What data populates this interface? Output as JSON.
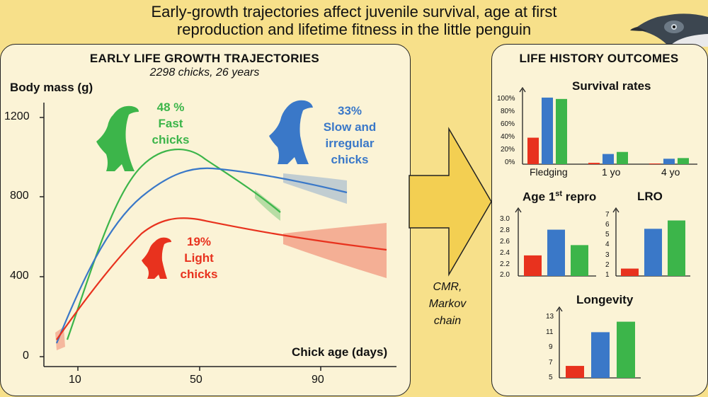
{
  "header": {
    "line1": "Early-growth trajectories affect juvenile survival, age at first",
    "line2": "reproduction and lifetime fitness in the little penguin"
  },
  "left": {
    "title": "EARLY LIFE GROWTH TRAJECTORIES",
    "subtitle": "2298 chicks, 26 years",
    "ylabel": "Body mass (g)",
    "xlabel": "Chick age (days)",
    "yticks": [
      "1200",
      "800",
      "400",
      "0"
    ],
    "xticks": [
      "10",
      "50",
      "90"
    ],
    "groups": {
      "fast": {
        "pct": "48 %",
        "line1": "Fast",
        "line2": "chicks",
        "color": "#3cb54a"
      },
      "slow": {
        "pct": "33%",
        "line1": "Slow and",
        "line2": "irregular",
        "line3": "chicks",
        "color": "#3a78c8"
      },
      "light": {
        "pct": "19%",
        "line1": "Light",
        "line2": "chicks",
        "color": "#e8321e"
      }
    }
  },
  "arrow": {
    "method1": "CMR,",
    "method2": "Markov",
    "method3": "chain"
  },
  "right": {
    "title": "LIFE HISTORY OUTCOMES",
    "survival": {
      "title": "Survival rates",
      "yticks": [
        "100%",
        "80%",
        "60%",
        "40%",
        "20%",
        "0%"
      ],
      "categories": [
        "Fledging",
        "1 yo",
        "4 yo"
      ]
    },
    "age": {
      "title": "Age 1",
      "sup": "st",
      "title_end": " repro",
      "yticks": [
        "3.0",
        "2.8",
        "2.6",
        "2.4",
        "2.2",
        "2.0"
      ]
    },
    "lro": {
      "title": "LRO",
      "yticks": [
        "7",
        "6",
        "5",
        "4",
        "3",
        "2",
        "1"
      ]
    },
    "longevity": {
      "title": "Longevity",
      "yticks": [
        "13",
        "11",
        "9",
        "7",
        "5"
      ]
    }
  },
  "chart_data": [
    {
      "type": "line",
      "title": "EARLY LIFE GROWTH TRAJECTORIES",
      "xlabel": "Chick age (days)",
      "ylabel": "Body mass (g)",
      "xlim": [
        0,
        105
      ],
      "ylim": [
        0,
        1250
      ],
      "series": [
        {
          "name": "Fast chicks",
          "x": [
            7,
            20,
            30,
            40,
            50,
            60,
            70,
            80
          ],
          "y": [
            80,
            700,
            950,
            1040,
            1000,
            880,
            720,
            580
          ]
        },
        {
          "name": "Slow and irregular chicks",
          "x": [
            5,
            20,
            30,
            40,
            50,
            60,
            70,
            80,
            90,
            95
          ],
          "y": [
            60,
            550,
            790,
            890,
            935,
            930,
            910,
            880,
            840,
            820
          ]
        },
        {
          "name": "Light chicks",
          "x": [
            5,
            20,
            30,
            40,
            50,
            60,
            70,
            80,
            90,
            100
          ],
          "y": [
            60,
            450,
            630,
            690,
            690,
            650,
            610,
            580,
            555,
            540
          ]
        }
      ]
    },
    {
      "type": "bar",
      "title": "Survival rates",
      "categories": [
        "Fledging",
        "1 yo",
        "4 yo"
      ],
      "ylim": [
        0,
        100
      ],
      "series": [
        {
          "color": "#e8321e",
          "values": [
            39,
            2,
            1
          ]
        },
        {
          "color": "#3a78c8",
          "values": [
            98,
            15,
            8
          ]
        },
        {
          "color": "#3cb54a",
          "values": [
            96,
            18,
            9
          ]
        }
      ]
    },
    {
      "type": "bar",
      "title": "Age 1st repro",
      "ylim": [
        2.0,
        3.1
      ],
      "series": [
        {
          "color": "#e8321e",
          "values": [
            2.4
          ]
        },
        {
          "color": "#3a78c8",
          "values": [
            2.9
          ]
        },
        {
          "color": "#3cb54a",
          "values": [
            2.6
          ]
        }
      ]
    },
    {
      "type": "bar",
      "title": "LRO",
      "ylim": [
        1,
        7.5
      ],
      "series": [
        {
          "color": "#e8321e",
          "values": [
            1.8
          ]
        },
        {
          "color": "#3a78c8",
          "values": [
            6.1
          ]
        },
        {
          "color": "#3cb54a",
          "values": [
            7.0
          ]
        }
      ]
    },
    {
      "type": "bar",
      "title": "Longevity",
      "ylim": [
        5,
        13.5
      ],
      "series": [
        {
          "color": "#e8321e",
          "values": [
            6.6
          ]
        },
        {
          "color": "#3a78c8",
          "values": [
            11.1
          ]
        },
        {
          "color": "#3cb54a",
          "values": [
            12.5
          ]
        }
      ]
    }
  ]
}
